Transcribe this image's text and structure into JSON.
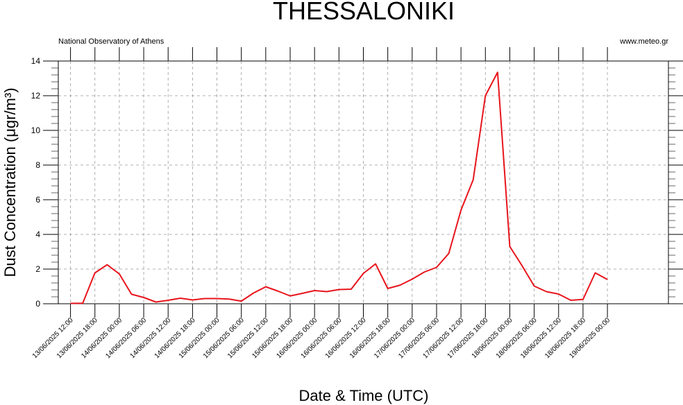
{
  "chart_data": {
    "type": "line",
    "title": "THESSALONIKI",
    "source_left": "National Observatory of Athens",
    "source_right": "www.meteo.gr",
    "y_label": "Dust Concentration (μgr/m³)",
    "x_label": "Date & Time (UTC)",
    "categories": [
      "13/06/2025 12:00",
      null,
      "13/06/2025 18:00",
      null,
      "14/06/2025 00:00",
      null,
      "14/06/2025 06:00",
      null,
      "14/06/2025 12:00",
      null,
      "14/06/2025 18:00",
      null,
      "15/06/2025 00:00",
      null,
      "15/06/2025 06:00",
      null,
      "15/06/2025 12:00",
      null,
      "15/06/2025 18:00",
      null,
      "16/06/2025 00:00",
      null,
      "16/06/2025 06:00",
      null,
      "16/06/2025 12:00",
      null,
      "16/06/2025 18:00",
      null,
      "17/06/2025 00:00",
      null,
      "17/06/2025 06:00",
      null,
      "17/06/2025 12:00",
      null,
      "17/06/2025 18:00",
      null,
      "18/06/2025 00:00",
      null,
      "18/06/2025 06:00",
      null,
      "18/06/2025 12:00",
      null,
      "18/06/2025 18:00",
      null,
      "19/06/2025 00:00"
    ],
    "series": [
      {
        "color": "#e8141c",
        "values": [
          0.02,
          0.03,
          1.78,
          2.25,
          1.72,
          0.55,
          0.36,
          0.1,
          0.2,
          0.32,
          0.22,
          0.3,
          0.3,
          0.27,
          0.15,
          0.62,
          0.98,
          0.73,
          0.45,
          0.6,
          0.76,
          0.7,
          0.82,
          0.84,
          1.75,
          2.3,
          0.88,
          1.07,
          1.42,
          1.83,
          2.1,
          2.9,
          5.4,
          7.15,
          12.0,
          13.35,
          3.3,
          2.2,
          1.02,
          0.7,
          0.56,
          0.2,
          0.25,
          1.78,
          1.4
        ]
      }
    ],
    "ylim": [
      0,
      14
    ],
    "yticks": [
      0,
      2,
      4,
      6,
      8,
      10,
      12,
      14
    ],
    "grid": true
  }
}
